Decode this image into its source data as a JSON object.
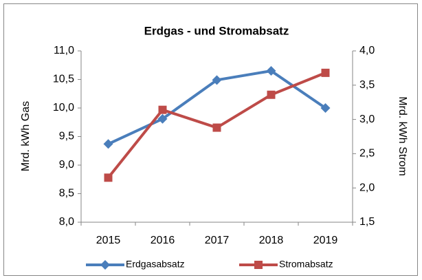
{
  "chart_data": {
    "type": "line",
    "title": "Erdgas - und Stromabsatz",
    "categories": [
      "2015",
      "2016",
      "2017",
      "2018",
      "2019"
    ],
    "series": [
      {
        "name": "Erdgasabsatz",
        "color": "#4a7ebb",
        "marker": "diamond",
        "values": [
          9.37,
          9.81,
          10.49,
          10.65,
          10.0
        ]
      },
      {
        "name": "Stromabsatz",
        "color": "#be4b48",
        "marker": "square",
        "axis": "y2",
        "values": [
          2.15,
          3.14,
          2.88,
          3.36,
          3.68
        ]
      }
    ],
    "ylabel": "Mrd. kWh Gas",
    "y2label": "Mrd. kWh Strom",
    "ylim": [
      8.0,
      11.0
    ],
    "yticks": [
      {
        "value": 8.0,
        "label": "8,0"
      },
      {
        "value": 8.5,
        "label": "8,5"
      },
      {
        "value": 9.0,
        "label": "9,0"
      },
      {
        "value": 9.5,
        "label": "9,5"
      },
      {
        "value": 10.0,
        "label": "10,0"
      },
      {
        "value": 10.5,
        "label": "10,5"
      },
      {
        "value": 11.0,
        "label": "11,0"
      }
    ],
    "y2lim": [
      1.5,
      4.0
    ],
    "y2ticks": [
      {
        "value": 1.5,
        "label": "1,5"
      },
      {
        "value": 2.0,
        "label": "2,0"
      },
      {
        "value": 2.5,
        "label": "2,5"
      },
      {
        "value": 3.0,
        "label": "3,0"
      },
      {
        "value": 3.5,
        "label": "3,5"
      },
      {
        "value": 4.0,
        "label": "4,0"
      }
    ],
    "grid": false,
    "legend": "bottom"
  }
}
